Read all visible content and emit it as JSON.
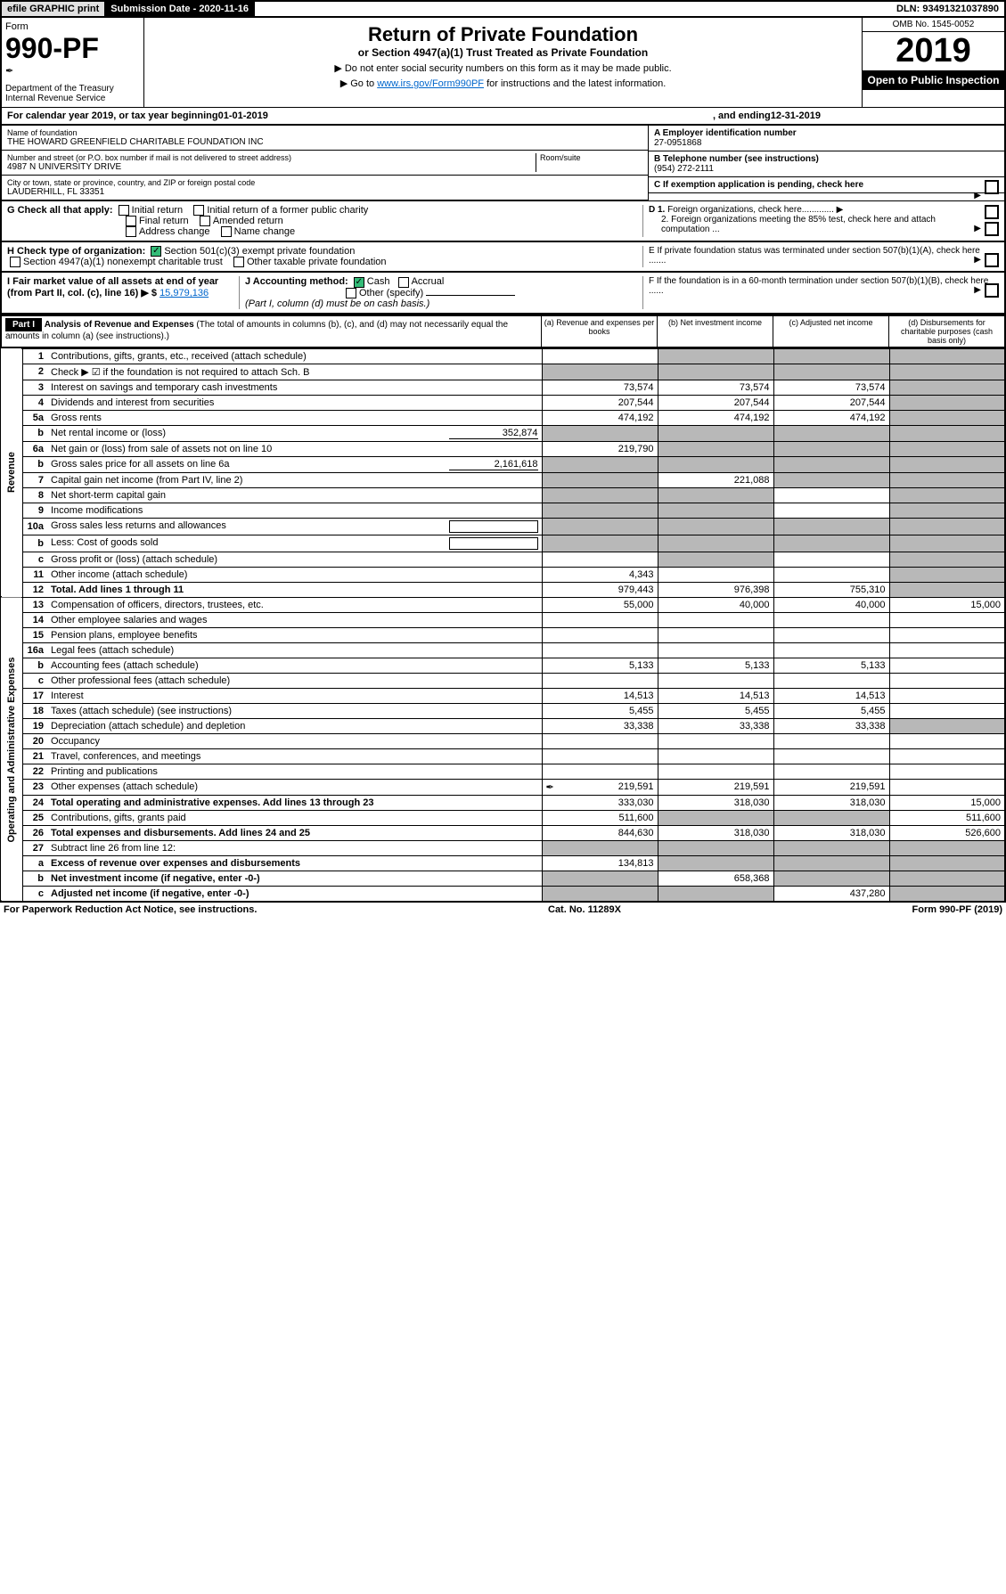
{
  "header": {
    "efile": "efile GRAPHIC print",
    "submission_label": "Submission Date - 2020-11-16",
    "dln": "DLN: 93491321037890",
    "form_label": "Form",
    "form_number": "990-PF",
    "dept": "Department of the Treasury",
    "irs": "Internal Revenue Service",
    "title": "Return of Private Foundation",
    "subtitle": "or Section 4947(a)(1) Trust Treated as Private Foundation",
    "note1": "▶ Do not enter social security numbers on this form as it may be made public.",
    "note2_pre": "▶ Go to ",
    "note2_link": "www.irs.gov/Form990PF",
    "note2_post": " for instructions and the latest information.",
    "omb": "OMB No. 1545-0052",
    "year": "2019",
    "open": "Open to Public Inspection"
  },
  "calendar": {
    "prefix": "For calendar year 2019, or tax year beginning ",
    "begin": "01-01-2019",
    "mid": ", and ending ",
    "end": "12-31-2019"
  },
  "entity": {
    "name_label": "Name of foundation",
    "name": "THE HOWARD GREENFIELD CHARITABLE FOUNDATION INC",
    "addr_label": "Number and street (or P.O. box number if mail is not delivered to street address)",
    "addr": "4987 N UNIVERSITY DRIVE",
    "room_label": "Room/suite",
    "city_label": "City or town, state or province, country, and ZIP or foreign postal code",
    "city": "LAUDERHILL, FL  33351",
    "ein_label": "A Employer identification number",
    "ein": "27-0951868",
    "phone_label": "B Telephone number (see instructions)",
    "phone": "(954) 272-2111",
    "c_label": "C If exemption application is pending, check here",
    "d1": "D 1. Foreign organizations, check here.............",
    "d2": "2. Foreign organizations meeting the 85% test, check here and attach computation ...",
    "e_label": "E  If private foundation status was terminated under section 507(b)(1)(A), check here .......",
    "f_label": "F  If the foundation is in a 60-month termination under section 507(b)(1)(B), check here ......"
  },
  "checks": {
    "g_label": "G Check all that apply:",
    "g_opts": [
      "Initial return",
      "Initial return of a former public charity",
      "Final return",
      "Amended return",
      "Address change",
      "Name change"
    ],
    "h_label": "H Check type of organization:",
    "h_501": "Section 501(c)(3) exempt private foundation",
    "h_4947": "Section 4947(a)(1) nonexempt charitable trust",
    "h_other": "Other taxable private foundation",
    "i_label": "I Fair market value of all assets at end of year (from Part II, col. (c), line 16) ▶ $",
    "i_value": "15,979,136",
    "j_label": "J Accounting method:",
    "j_cash": "Cash",
    "j_accrual": "Accrual",
    "j_other": "Other (specify)",
    "j_note": "(Part I, column (d) must be on cash basis.)"
  },
  "part1": {
    "label": "Part I",
    "title": "Analysis of Revenue and Expenses",
    "title_note": "(The total of amounts in columns (b), (c), and (d) may not necessarily equal the amounts in column (a) (see instructions).)",
    "col_a": "(a)    Revenue and expenses per books",
    "col_b": "(b)  Net investment income",
    "col_c": "(c)  Adjusted net income",
    "col_d": "(d)  Disbursements for charitable purposes (cash basis only)",
    "side_rev": "Revenue",
    "side_exp": "Operating and Administrative Expenses"
  },
  "rows": [
    {
      "ln": "1",
      "desc": "Contributions, gifts, grants, etc., received (attach schedule)",
      "a": "",
      "b": "gray",
      "c": "gray",
      "d": "gray"
    },
    {
      "ln": "2",
      "desc": "Check ▶ ☑ if the foundation is not required to attach Sch. B",
      "a": "gray",
      "b": "gray",
      "c": "gray",
      "d": "gray",
      "bold_not": true
    },
    {
      "ln": "3",
      "desc": "Interest on savings and temporary cash investments",
      "a": "73,574",
      "b": "73,574",
      "c": "73,574",
      "d": "gray"
    },
    {
      "ln": "4",
      "desc": "Dividends and interest from securities",
      "a": "207,544",
      "b": "207,544",
      "c": "207,544",
      "d": "gray"
    },
    {
      "ln": "5a",
      "desc": "Gross rents",
      "a": "474,192",
      "b": "474,192",
      "c": "474,192",
      "d": "gray"
    },
    {
      "ln": "b",
      "desc": "Net rental income or (loss)",
      "inline_val": "352,874",
      "a": "gray",
      "b": "gray",
      "c": "gray",
      "d": "gray"
    },
    {
      "ln": "6a",
      "desc": "Net gain or (loss) from sale of assets not on line 10",
      "a": "219,790",
      "b": "gray",
      "c": "gray",
      "d": "gray"
    },
    {
      "ln": "b",
      "desc": "Gross sales price for all assets on line 6a",
      "inline_val": "2,161,618",
      "a": "gray",
      "b": "gray",
      "c": "gray",
      "d": "gray"
    },
    {
      "ln": "7",
      "desc": "Capital gain net income (from Part IV, line 2)",
      "a": "gray",
      "b": "221,088",
      "c": "gray",
      "d": "gray"
    },
    {
      "ln": "8",
      "desc": "Net short-term capital gain",
      "a": "gray",
      "b": "gray",
      "c": "",
      "d": "gray"
    },
    {
      "ln": "9",
      "desc": "Income modifications",
      "a": "gray",
      "b": "gray",
      "c": "",
      "d": "gray"
    },
    {
      "ln": "10a",
      "desc": "Gross sales less returns and allowances",
      "inline_box": true,
      "a": "gray",
      "b": "gray",
      "c": "gray",
      "d": "gray"
    },
    {
      "ln": "b",
      "desc": "Less: Cost of goods sold",
      "inline_box": true,
      "a": "gray",
      "b": "gray",
      "c": "gray",
      "d": "gray"
    },
    {
      "ln": "c",
      "desc": "Gross profit or (loss) (attach schedule)",
      "a": "",
      "b": "gray",
      "c": "",
      "d": "gray"
    },
    {
      "ln": "11",
      "desc": "Other income (attach schedule)",
      "a": "4,343",
      "b": "",
      "c": "",
      "d": "gray"
    },
    {
      "ln": "12",
      "desc": "Total. Add lines 1 through 11",
      "bold": true,
      "a": "979,443",
      "b": "976,398",
      "c": "755,310",
      "d": "gray"
    },
    {
      "ln": "13",
      "desc": "Compensation of officers, directors, trustees, etc.",
      "a": "55,000",
      "b": "40,000",
      "c": "40,000",
      "d": "15,000"
    },
    {
      "ln": "14",
      "desc": "Other employee salaries and wages",
      "a": "",
      "b": "",
      "c": "",
      "d": ""
    },
    {
      "ln": "15",
      "desc": "Pension plans, employee benefits",
      "a": "",
      "b": "",
      "c": "",
      "d": ""
    },
    {
      "ln": "16a",
      "desc": "Legal fees (attach schedule)",
      "a": "",
      "b": "",
      "c": "",
      "d": ""
    },
    {
      "ln": "b",
      "desc": "Accounting fees (attach schedule)",
      "a": "5,133",
      "b": "5,133",
      "c": "5,133",
      "d": ""
    },
    {
      "ln": "c",
      "desc": "Other professional fees (attach schedule)",
      "a": "",
      "b": "",
      "c": "",
      "d": ""
    },
    {
      "ln": "17",
      "desc": "Interest",
      "a": "14,513",
      "b": "14,513",
      "c": "14,513",
      "d": ""
    },
    {
      "ln": "18",
      "desc": "Taxes (attach schedule) (see instructions)",
      "a": "5,455",
      "b": "5,455",
      "c": "5,455",
      "d": ""
    },
    {
      "ln": "19",
      "desc": "Depreciation (attach schedule) and depletion",
      "a": "33,338",
      "b": "33,338",
      "c": "33,338",
      "d": "gray"
    },
    {
      "ln": "20",
      "desc": "Occupancy",
      "a": "",
      "b": "",
      "c": "",
      "d": ""
    },
    {
      "ln": "21",
      "desc": "Travel, conferences, and meetings",
      "a": "",
      "b": "",
      "c": "",
      "d": ""
    },
    {
      "ln": "22",
      "desc": "Printing and publications",
      "a": "",
      "b": "",
      "c": "",
      "d": ""
    },
    {
      "ln": "23",
      "desc": "Other expenses (attach schedule)",
      "icon": true,
      "a": "219,591",
      "b": "219,591",
      "c": "219,591",
      "d": ""
    },
    {
      "ln": "24",
      "desc": "Total operating and administrative expenses. Add lines 13 through 23",
      "bold": true,
      "a": "333,030",
      "b": "318,030",
      "c": "318,030",
      "d": "15,000"
    },
    {
      "ln": "25",
      "desc": "Contributions, gifts, grants paid",
      "a": "511,600",
      "b": "gray",
      "c": "gray",
      "d": "511,600"
    },
    {
      "ln": "26",
      "desc": "Total expenses and disbursements. Add lines 24 and 25",
      "bold": true,
      "a": "844,630",
      "b": "318,030",
      "c": "318,030",
      "d": "526,600"
    },
    {
      "ln": "27",
      "desc": "Subtract line 26 from line 12:",
      "a": "gray",
      "b": "gray",
      "c": "gray",
      "d": "gray"
    },
    {
      "ln": "a",
      "desc": "Excess of revenue over expenses and disbursements",
      "bold": true,
      "a": "134,813",
      "b": "gray",
      "c": "gray",
      "d": "gray"
    },
    {
      "ln": "b",
      "desc": "Net investment income (if negative, enter -0-)",
      "bold": true,
      "a": "gray",
      "b": "658,368",
      "c": "gray",
      "d": "gray"
    },
    {
      "ln": "c",
      "desc": "Adjusted net income (if negative, enter -0-)",
      "bold": true,
      "a": "gray",
      "b": "gray",
      "c": "437,280",
      "d": "gray"
    }
  ],
  "footer": {
    "left": "For Paperwork Reduction Act Notice, see instructions.",
    "mid": "Cat. No. 11289X",
    "right_pre": "Form ",
    "right_form": "990-PF",
    "right_post": " (2019)"
  }
}
